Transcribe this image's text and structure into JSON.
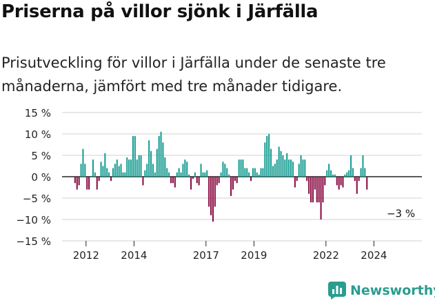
{
  "header": {
    "title": "Priserna på villor sjönk i Järfälla",
    "subtitle": "Prisutveckling för villor i Järfälla under de senaste tre månaderna, jämfört med tre månader tidigare."
  },
  "brand": {
    "name": "Newsworthy",
    "icon": "bar-chart-logo-icon"
  },
  "colors": {
    "positive": "#1a9e94",
    "negative": "#8a0e45",
    "grid": "#d0d0d0",
    "axis": "#222222",
    "brand": "#2a9d8f"
  },
  "chart_data": {
    "type": "bar",
    "title": "Priserna på villor sjönk i Järfälla",
    "subtitle": "Prisutveckling för villor i Järfälla under de senaste tre månaderna, jämfört med tre månader tidigare.",
    "xlabel": "",
    "ylabel": "",
    "unit": "%",
    "ylim": [
      -15,
      15
    ],
    "yticks": [
      15,
      10,
      5,
      0,
      -5,
      -10,
      -15
    ],
    "ytick_labels": [
      "15 %",
      "10 %",
      "5 %",
      "0 %",
      "−5 %",
      "−10 %",
      "−15 %"
    ],
    "xlim": [
      "2011-01",
      "2025-12"
    ],
    "x_tick_labels": [
      "2012",
      "2014",
      "2017",
      "2019",
      "2022",
      "2024"
    ],
    "x_tick_values": [
      "2012-01",
      "2014-01",
      "2017-01",
      "2019-01",
      "2022-01",
      "2024-01"
    ],
    "grid": true,
    "annotations": [
      {
        "x": "2025-02",
        "y": -3,
        "text": "−3 %"
      }
    ],
    "series": [
      {
        "start": "2011-07",
        "frequency": "monthly",
        "values": [
          -1.5,
          -3,
          -2,
          3,
          6.5,
          3,
          -3,
          -3,
          0,
          4,
          1,
          -3,
          -1,
          3.5,
          2.5,
          5.5,
          2,
          1,
          -1,
          2,
          3,
          4,
          2.5,
          3,
          1,
          1,
          4.5,
          4,
          4,
          9.5,
          9.5,
          4,
          5,
          5,
          -2,
          1.5,
          3,
          8.5,
          6,
          3,
          1,
          6.5,
          9.5,
          10.5,
          8,
          4.5,
          2,
          1,
          -1.5,
          -1.5,
          -2.5,
          1,
          2,
          1,
          3,
          4,
          3.5,
          0.5,
          -3,
          -0.5,
          1,
          -1.5,
          -2,
          3,
          1,
          1,
          1.5,
          -7,
          -9,
          -10.5,
          -7,
          -2,
          -1.5,
          1,
          3.5,
          3,
          2,
          0.5,
          -4.5,
          -3,
          -1,
          -1.5,
          4,
          4,
          4,
          2,
          2,
          1,
          -1,
          2,
          2,
          1,
          0.5,
          2,
          2,
          8,
          9.5,
          10,
          6.5,
          2.5,
          3,
          4,
          7,
          6,
          5,
          4,
          5.5,
          4,
          4,
          3.5,
          -2.5,
          -1,
          3,
          5,
          4,
          4,
          -1,
          -4,
          -6,
          -6,
          -3,
          -6,
          -6,
          -10,
          -6,
          -2,
          1.5,
          3,
          1.5,
          0.5,
          0.5,
          -2,
          -3,
          -2,
          -2.5,
          0.5,
          1,
          1.5,
          5,
          2,
          -1,
          -4,
          -1,
          2,
          5,
          2,
          -3
        ]
      }
    ]
  }
}
